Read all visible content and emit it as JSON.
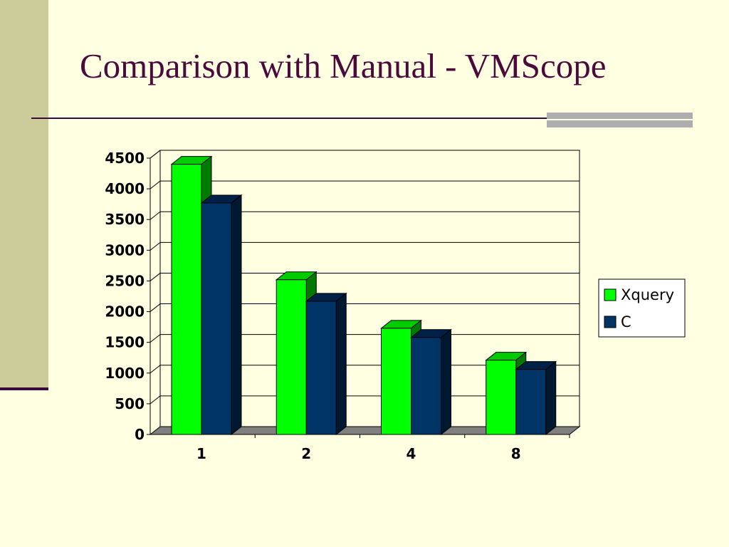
{
  "slide": {
    "title": "Comparison with Manual - VMScope"
  },
  "chart_data": {
    "type": "bar",
    "categories": [
      "1",
      "2",
      "4",
      "8"
    ],
    "series": [
      {
        "name": "Xquery",
        "values": [
          4400,
          2520,
          1730,
          1210
        ]
      },
      {
        "name": "C",
        "values": [
          3770,
          2170,
          1580,
          1060
        ]
      }
    ],
    "ylim": [
      0,
      4500
    ],
    "yticks": [
      0,
      500,
      1000,
      1500,
      2000,
      2500,
      3000,
      3500,
      4000,
      4500
    ],
    "grid": true,
    "legend_position": "right",
    "style": "3d-clustered",
    "colors": {
      "Xquery": "#00FF00",
      "C": "#003366"
    }
  }
}
